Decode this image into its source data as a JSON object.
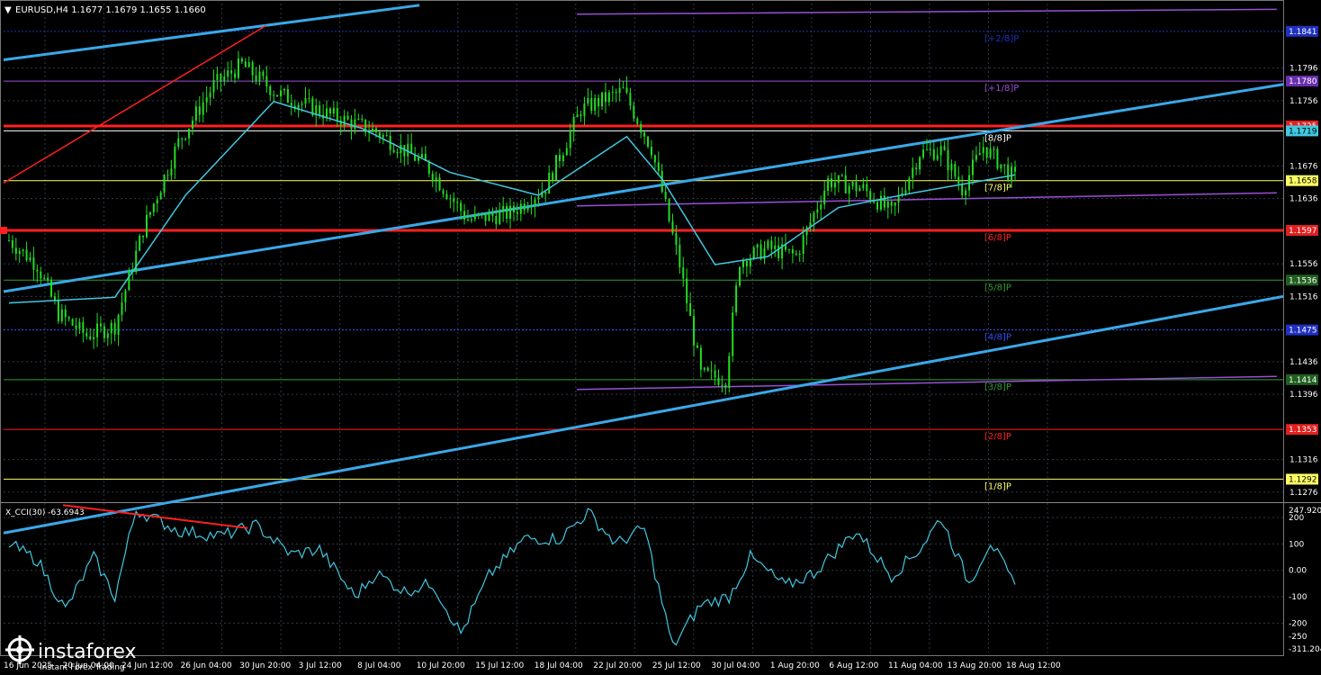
{
  "header": {
    "symbol_line": "EURUSD,H4  1.1677 1.1679 1.1655 1.1660",
    "triangle": "▼"
  },
  "colors": {
    "background": "#000000",
    "grid": "#2e3a4a",
    "candles": "#22dd22",
    "ma": "#40c8e0",
    "channel": "#3aa8e8",
    "red_line": "#ff2020",
    "murrey_purple": "#9a4fd8",
    "dotted_blue": "#3050ff",
    "yellow": "#e6e600",
    "cci": "#40c8e0"
  },
  "price_axis": {
    "ticks": [
      "1.1796",
      "1.1756",
      "1.1676",
      "1.1636",
      "1.1556",
      "1.1516",
      "1.1436",
      "1.1396",
      "1.1316",
      "1.1276"
    ],
    "min": 1.1266,
    "max": 1.1875
  },
  "price_tags": [
    {
      "value": 1.1841,
      "label": "1.1841",
      "bg": "#2030c0",
      "fg": "#ffffff"
    },
    {
      "value": 1.178,
      "label": "1.1780",
      "bg": "#6a2fb0",
      "fg": "#ffffff"
    },
    {
      "value": 1.1725,
      "label": "1.1725",
      "bg": "#e02020",
      "fg": "#ffffff"
    },
    {
      "value": 1.1719,
      "label": "1.1719",
      "bg": "#40c8e0",
      "fg": "#000000"
    },
    {
      "value": 1.1658,
      "label": "1.1658",
      "bg": "#ffff66",
      "fg": "#000000"
    },
    {
      "value": 1.1597,
      "label": "1.1597",
      "bg": "#e02020",
      "fg": "#ffffff"
    },
    {
      "value": 1.1536,
      "label": "1.1536",
      "bg": "#206020",
      "fg": "#ffffff"
    },
    {
      "value": 1.1475,
      "label": "1.1475",
      "bg": "#2030c0",
      "fg": "#ffffff"
    },
    {
      "value": 1.1414,
      "label": "1.1414",
      "bg": "#206020",
      "fg": "#ffffff"
    },
    {
      "value": 1.1353,
      "label": "1.1353",
      "bg": "#e02020",
      "fg": "#ffffff"
    },
    {
      "value": 1.1292,
      "label": "1.1292",
      "bg": "#ffff66",
      "fg": "#000000"
    }
  ],
  "murrey_levels": [
    {
      "label": "[+2/8]P",
      "value": 1.1841,
      "color": "#2030c0",
      "style": "dotted"
    },
    {
      "label": "[+1/8]P",
      "value": 1.178,
      "color": "#9a4fd8",
      "style": "solid"
    },
    {
      "label": "[8/8]P",
      "value": 1.1719,
      "color": "#ffffff",
      "style": "solid"
    },
    {
      "label": "[7/8]P",
      "value": 1.1658,
      "color": "#ffff66",
      "style": "solid"
    },
    {
      "label": "[6/8]P",
      "value": 1.1597,
      "color": "#ff2020",
      "style": "thick"
    },
    {
      "label": "[5/8]P",
      "value": 1.1536,
      "color": "#30a030",
      "style": "solid"
    },
    {
      "label": "[4/8]P",
      "value": 1.1475,
      "color": "#3050ff",
      "style": "dotted"
    },
    {
      "label": "[3/8]P",
      "value": 1.1414,
      "color": "#30a030",
      "style": "solid"
    },
    {
      "label": "[2/8]P",
      "value": 1.1353,
      "color": "#ff2020",
      "style": "solid"
    },
    {
      "label": "[1/8]P",
      "value": 1.1292,
      "color": "#ffff66",
      "style": "solid"
    }
  ],
  "key_red_lines": [
    1.1725,
    1.1597
  ],
  "purple_channel": [
    {
      "x0": 0.448,
      "v0": 1.1862,
      "x1": 0.995,
      "v1": 1.1868
    },
    {
      "x0": 0.448,
      "v0": 1.1627,
      "x1": 0.995,
      "v1": 1.1643
    },
    {
      "x0": 0.448,
      "v0": 1.1402,
      "x1": 0.995,
      "v1": 1.1418
    }
  ],
  "trend_lines": [
    {
      "x0": 0.0,
      "v0": 1.1806,
      "x1": 0.325,
      "v1": 1.1873
    },
    {
      "x0": 0.0,
      "v0": 1.1522,
      "x1": 1.0,
      "v1": 1.1776
    },
    {
      "x0": 0.0,
      "v0": 1.1226,
      "x1": 1.0,
      "v1": 1.1516
    }
  ],
  "red_trend": {
    "x0": 0.0,
    "v0": 1.1655,
    "x1": 0.205,
    "v1": 1.1848
  },
  "time_axis": {
    "labels": [
      "16 Jun 2025",
      "20 Jun 04:00",
      "24 Jun 12:00",
      "26 Jun 04:00",
      "30 Jun 20:00",
      "3 Jul 12:00",
      "8 Jul 04:00",
      "10 Jul 20:00",
      "15 Jul 12:00",
      "18 Jul 04:00",
      "22 Jul 20:00",
      "25 Jul 12:00",
      "30 Jul 04:00",
      "1 Aug 20:00",
      "6 Aug 12:00",
      "11 Aug 04:00",
      "13 Aug 20:00",
      "18 Aug 12:00"
    ],
    "n_bars": 286
  },
  "chart_data": {
    "type": "candlestick",
    "symbol": "EURUSD",
    "timeframe": "H4",
    "last_ohlc": {
      "open": 1.1677,
      "high": 1.1679,
      "low": 1.1655,
      "close": 1.166
    },
    "price_anchors": [
      {
        "bar": 0,
        "price": 1.1585
      },
      {
        "bar": 8,
        "price": 1.1555
      },
      {
        "bar": 14,
        "price": 1.1495
      },
      {
        "bar": 22,
        "price": 1.1468
      },
      {
        "bar": 30,
        "price": 1.148
      },
      {
        "bar": 38,
        "price": 1.1598
      },
      {
        "bar": 48,
        "price": 1.1705
      },
      {
        "bar": 58,
        "price": 1.1775
      },
      {
        "bar": 66,
        "price": 1.18
      },
      {
        "bar": 76,
        "price": 1.1765
      },
      {
        "bar": 90,
        "price": 1.174
      },
      {
        "bar": 104,
        "price": 1.1718
      },
      {
        "bar": 118,
        "price": 1.1678
      },
      {
        "bar": 130,
        "price": 1.161
      },
      {
        "bar": 142,
        "price": 1.1618
      },
      {
        "bar": 152,
        "price": 1.165
      },
      {
        "bar": 162,
        "price": 1.1745
      },
      {
        "bar": 174,
        "price": 1.1768
      },
      {
        "bar": 182,
        "price": 1.1698
      },
      {
        "bar": 190,
        "price": 1.1555
      },
      {
        "bar": 196,
        "price": 1.142
      },
      {
        "bar": 203,
        "price": 1.1415
      },
      {
        "bar": 207,
        "price": 1.156
      },
      {
        "bar": 215,
        "price": 1.1575
      },
      {
        "bar": 223,
        "price": 1.1566
      },
      {
        "bar": 232,
        "price": 1.1658
      },
      {
        "bar": 242,
        "price": 1.1648
      },
      {
        "bar": 250,
        "price": 1.1618
      },
      {
        "bar": 258,
        "price": 1.1692
      },
      {
        "bar": 264,
        "price": 1.1695
      },
      {
        "bar": 270,
        "price": 1.1648
      },
      {
        "bar": 276,
        "price": 1.17
      },
      {
        "bar": 285,
        "price": 1.166
      }
    ],
    "ma_anchors": [
      {
        "bar": 0,
        "price": 1.1508
      },
      {
        "bar": 30,
        "price": 1.1515
      },
      {
        "bar": 50,
        "price": 1.164
      },
      {
        "bar": 75,
        "price": 1.1755
      },
      {
        "bar": 100,
        "price": 1.1722
      },
      {
        "bar": 125,
        "price": 1.1668
      },
      {
        "bar": 150,
        "price": 1.164
      },
      {
        "bar": 175,
        "price": 1.1712
      },
      {
        "bar": 185,
        "price": 1.166
      },
      {
        "bar": 200,
        "price": 1.1555
      },
      {
        "bar": 215,
        "price": 1.1565
      },
      {
        "bar": 235,
        "price": 1.1625
      },
      {
        "bar": 255,
        "price": 1.1642
      },
      {
        "bar": 285,
        "price": 1.1665
      }
    ]
  },
  "cci": {
    "label": "X_CCI(30) -63.6943",
    "axis_ticks": [
      "247.9205",
      "200",
      "100",
      "0.00",
      "-100",
      "-200",
      "-250",
      "-311.204"
    ],
    "max": 247.9205,
    "min": -311.204,
    "anchors": [
      {
        "bar": 0,
        "value": 100
      },
      {
        "bar": 8,
        "value": 40
      },
      {
        "bar": 16,
        "value": -150
      },
      {
        "bar": 24,
        "value": 50
      },
      {
        "bar": 30,
        "value": -100
      },
      {
        "bar": 36,
        "value": 230
      },
      {
        "bar": 48,
        "value": 150
      },
      {
        "bar": 60,
        "value": 130
      },
      {
        "bar": 70,
        "value": 170
      },
      {
        "bar": 80,
        "value": 60
      },
      {
        "bar": 88,
        "value": 80
      },
      {
        "bar": 98,
        "value": -100
      },
      {
        "bar": 104,
        "value": -10
      },
      {
        "bar": 112,
        "value": -80
      },
      {
        "bar": 120,
        "value": -50
      },
      {
        "bar": 128,
        "value": -240
      },
      {
        "bar": 136,
        "value": -20
      },
      {
        "bar": 146,
        "value": 120
      },
      {
        "bar": 156,
        "value": 120
      },
      {
        "bar": 164,
        "value": 220
      },
      {
        "bar": 172,
        "value": 100
      },
      {
        "bar": 180,
        "value": 160
      },
      {
        "bar": 188,
        "value": -290
      },
      {
        "bar": 196,
        "value": -130
      },
      {
        "bar": 204,
        "value": -100
      },
      {
        "bar": 210,
        "value": 50
      },
      {
        "bar": 220,
        "value": -60
      },
      {
        "bar": 228,
        "value": -10
      },
      {
        "bar": 240,
        "value": 150
      },
      {
        "bar": 250,
        "value": -20
      },
      {
        "bar": 258,
        "value": 80
      },
      {
        "bar": 264,
        "value": 200
      },
      {
        "bar": 272,
        "value": -50
      },
      {
        "bar": 278,
        "value": 110
      },
      {
        "bar": 285,
        "value": -64
      }
    ],
    "divergence_line": {
      "bar0": 0,
      "v0": 247,
      "bar1": 60,
      "v1": 160
    }
  },
  "watermark": {
    "brand": "instaforex",
    "tagline": "Instant Forex Trading"
  }
}
